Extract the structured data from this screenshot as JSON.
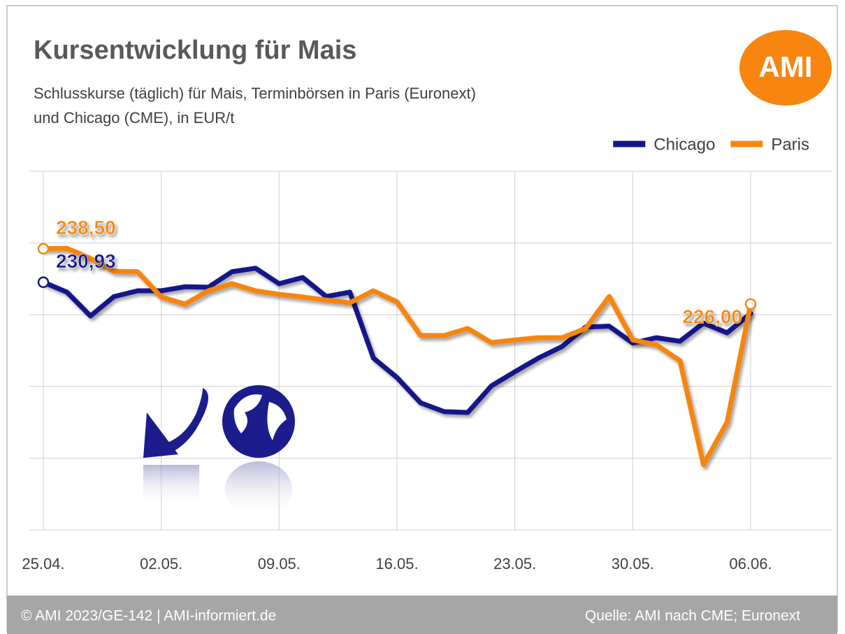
{
  "chart_data": {
    "type": "line",
    "title": "Kursentwicklung für Mais",
    "subtitle": [
      "Schlusskurse (täglich) für Mais, Terminbörsen in Paris (Euronext)",
      "und Chicago (CME), in EUR/t"
    ],
    "logo": "AMI",
    "footer_left": "© AMI 2023/GE-142 | AMI-informiert.de",
    "footer_right": "Quelle: AMI nach CME; Euronext",
    "categories": [
      "25.04.",
      null,
      null,
      null,
      null,
      "02.05.",
      null,
      null,
      null,
      null,
      "09.05.",
      null,
      null,
      null,
      null,
      "16.05.",
      null,
      null,
      null,
      null,
      "23.05.",
      null,
      null,
      null,
      null,
      "30.05.",
      null,
      null,
      null,
      null,
      "06.06."
    ],
    "ylim": [
      175,
      256
    ],
    "yticks": [
      175,
      191.2,
      207.4,
      223.6,
      239.8,
      256
    ],
    "grid": true,
    "legend": "top-right",
    "series": [
      {
        "name": "Chicago",
        "color": "#14148a",
        "values": [
          230.93,
          228.7,
          223.3,
          227.7,
          229.0,
          229.0,
          229.9,
          229.8,
          233.3,
          234.1,
          230.6,
          232.0,
          227.7,
          228.7,
          213.8,
          209.4,
          203.7,
          201.7,
          201.5,
          207.5,
          210.7,
          213.8,
          216.4,
          220.8,
          221.0,
          217.2,
          218.4,
          217.6,
          221.7,
          219.5,
          223.9
        ],
        "value_labels": [
          "230,93",
          null,
          null,
          null,
          null,
          null,
          null,
          null,
          null,
          null,
          null,
          null,
          null,
          null,
          null,
          null,
          null,
          null,
          null,
          null,
          null,
          null,
          null,
          null,
          null,
          null,
          null,
          null,
          null,
          null,
          null
        ]
      },
      {
        "name": "Paris",
        "color": "#f7850f",
        "values": [
          238.5,
          238.6,
          236.3,
          233.4,
          233.3,
          227.6,
          226.0,
          229.0,
          230.6,
          229.0,
          228.2,
          227.6,
          226.9,
          226.3,
          229.0,
          226.5,
          218.9,
          218.9,
          220.5,
          217.3,
          217.9,
          218.4,
          218.4,
          220.5,
          227.7,
          217.9,
          216.8,
          213.2,
          189.7,
          199.3,
          226.0
        ],
        "value_labels": [
          "238,50",
          null,
          null,
          null,
          null,
          null,
          null,
          null,
          null,
          null,
          null,
          null,
          null,
          null,
          null,
          null,
          null,
          null,
          null,
          null,
          null,
          null,
          null,
          null,
          null,
          null,
          null,
          null,
          null,
          null,
          "226,00"
        ]
      }
    ]
  }
}
